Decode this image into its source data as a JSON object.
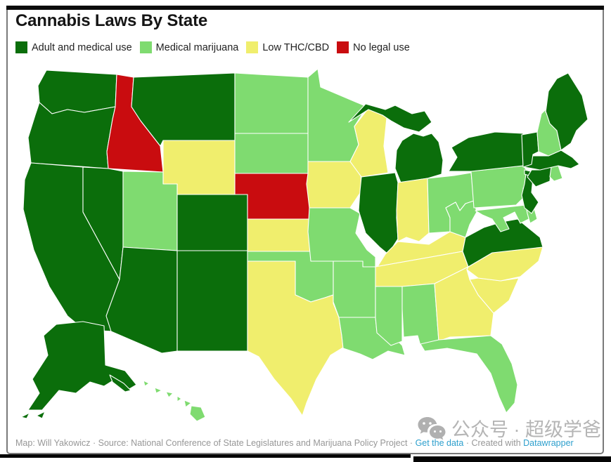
{
  "title": "Cannabis Laws By State",
  "legend": [
    {
      "id": "adult_medical",
      "label": "Adult and medical use",
      "color": "#0b6e0b"
    },
    {
      "id": "medical",
      "label": "Medical marijuana",
      "color": "#7fdb70"
    },
    {
      "id": "low_thc",
      "label": "Low THC/CBD",
      "color": "#f0ee6d"
    },
    {
      "id": "none",
      "label": "No legal use",
      "color": "#c90c0f"
    }
  ],
  "map_data": {
    "type": "choropleth-us-states",
    "states": [
      {
        "abbr": "WA",
        "name": "Washington",
        "status": "adult_medical"
      },
      {
        "abbr": "OR",
        "name": "Oregon",
        "status": "adult_medical"
      },
      {
        "abbr": "CA",
        "name": "California",
        "status": "adult_medical"
      },
      {
        "abbr": "NV",
        "name": "Nevada",
        "status": "adult_medical"
      },
      {
        "abbr": "ID",
        "name": "Idaho",
        "status": "none"
      },
      {
        "abbr": "MT",
        "name": "Montana",
        "status": "adult_medical"
      },
      {
        "abbr": "WY",
        "name": "Wyoming",
        "status": "low_thc"
      },
      {
        "abbr": "UT",
        "name": "Utah",
        "status": "medical"
      },
      {
        "abbr": "AZ",
        "name": "Arizona",
        "status": "adult_medical"
      },
      {
        "abbr": "NM",
        "name": "New Mexico",
        "status": "adult_medical"
      },
      {
        "abbr": "CO",
        "name": "Colorado",
        "status": "adult_medical"
      },
      {
        "abbr": "ND",
        "name": "North Dakota",
        "status": "medical"
      },
      {
        "abbr": "SD",
        "name": "South Dakota",
        "status": "medical"
      },
      {
        "abbr": "NE",
        "name": "Nebraska",
        "status": "none"
      },
      {
        "abbr": "KS",
        "name": "Kansas",
        "status": "low_thc"
      },
      {
        "abbr": "OK",
        "name": "Oklahoma",
        "status": "medical"
      },
      {
        "abbr": "TX",
        "name": "Texas",
        "status": "low_thc"
      },
      {
        "abbr": "MN",
        "name": "Minnesota",
        "status": "medical"
      },
      {
        "abbr": "IA",
        "name": "Iowa",
        "status": "low_thc"
      },
      {
        "abbr": "MO",
        "name": "Missouri",
        "status": "medical"
      },
      {
        "abbr": "AR",
        "name": "Arkansas",
        "status": "medical"
      },
      {
        "abbr": "LA",
        "name": "Louisiana",
        "status": "medical"
      },
      {
        "abbr": "WI",
        "name": "Wisconsin",
        "status": "low_thc"
      },
      {
        "abbr": "IL",
        "name": "Illinois",
        "status": "adult_medical"
      },
      {
        "abbr": "MI",
        "name": "Michigan",
        "status": "adult_medical"
      },
      {
        "abbr": "IN",
        "name": "Indiana",
        "status": "low_thc"
      },
      {
        "abbr": "OH",
        "name": "Ohio",
        "status": "medical"
      },
      {
        "abbr": "KY",
        "name": "Kentucky",
        "status": "low_thc"
      },
      {
        "abbr": "TN",
        "name": "Tennessee",
        "status": "low_thc"
      },
      {
        "abbr": "MS",
        "name": "Mississippi",
        "status": "medical"
      },
      {
        "abbr": "AL",
        "name": "Alabama",
        "status": "medical"
      },
      {
        "abbr": "GA",
        "name": "Georgia",
        "status": "low_thc"
      },
      {
        "abbr": "FL",
        "name": "Florida",
        "status": "medical"
      },
      {
        "abbr": "SC",
        "name": "South Carolina",
        "status": "low_thc"
      },
      {
        "abbr": "NC",
        "name": "North Carolina",
        "status": "low_thc"
      },
      {
        "abbr": "VA",
        "name": "Virginia",
        "status": "adult_medical"
      },
      {
        "abbr": "WV",
        "name": "West Virginia",
        "status": "medical"
      },
      {
        "abbr": "MD",
        "name": "Maryland",
        "status": "medical"
      },
      {
        "abbr": "DE",
        "name": "Delaware",
        "status": "medical"
      },
      {
        "abbr": "PA",
        "name": "Pennsylvania",
        "status": "medical"
      },
      {
        "abbr": "NJ",
        "name": "New Jersey",
        "status": "adult_medical"
      },
      {
        "abbr": "NY",
        "name": "New York",
        "status": "adult_medical"
      },
      {
        "abbr": "CT",
        "name": "Connecticut",
        "status": "adult_medical"
      },
      {
        "abbr": "RI",
        "name": "Rhode Island",
        "status": "medical"
      },
      {
        "abbr": "MA",
        "name": "Massachusetts",
        "status": "adult_medical"
      },
      {
        "abbr": "VT",
        "name": "Vermont",
        "status": "adult_medical"
      },
      {
        "abbr": "NH",
        "name": "New Hampshire",
        "status": "medical"
      },
      {
        "abbr": "ME",
        "name": "Maine",
        "status": "adult_medical"
      },
      {
        "abbr": "AK",
        "name": "Alaska",
        "status": "adult_medical"
      },
      {
        "abbr": "HI",
        "name": "Hawaii",
        "status": "medical"
      }
    ]
  },
  "footer": {
    "prefix": "Map: Will Yakowicz · Source: National Conference of State Legislatures and Marijuana Policy Project · ",
    "get_data_label": "Get the data",
    "middle": " · Created with ",
    "created_with_label": "Datawrapper"
  },
  "watermark": {
    "text": "公众号 · 超级学爸"
  }
}
